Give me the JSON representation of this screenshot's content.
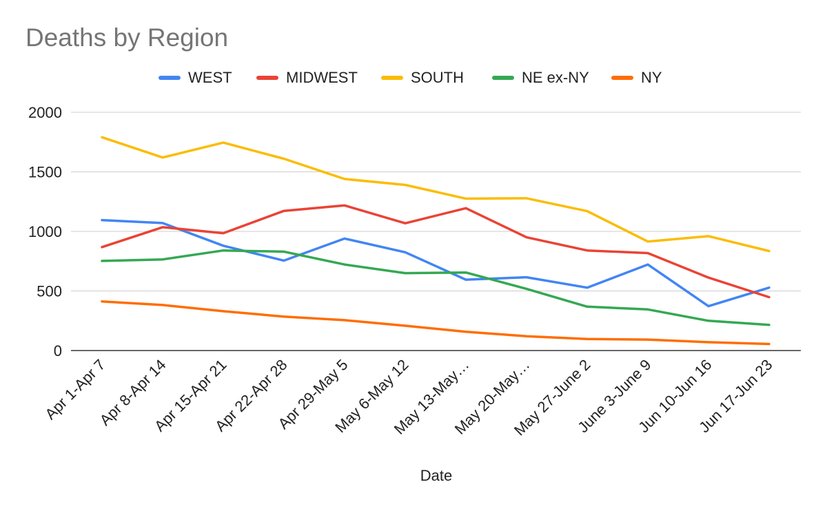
{
  "chart_data": {
    "type": "line",
    "title": "Deaths by Region",
    "xlabel": "Date",
    "ylabel": "",
    "ylim": [
      0,
      2000
    ],
    "yticks": [
      0,
      500,
      1000,
      1500,
      2000
    ],
    "grid": true,
    "legend_position": "top",
    "categories": [
      "Apr 1-Apr 7",
      "Apr 8-Apr 14",
      "Apr 15-Apr 21",
      "Apr 22-Apr 28",
      "Apr 29-May 5",
      "May 6-May 12",
      "May 13-May…",
      "May 20-May…",
      "May 27-June 2",
      "June 3-June 9",
      "Jun 10-Jun 16",
      "Jun 17-Jun 23"
    ],
    "series": [
      {
        "name": "WEST",
        "color": "#4285F4",
        "values": [
          1095,
          1070,
          880,
          755,
          940,
          825,
          595,
          615,
          528,
          722,
          372,
          528
        ]
      },
      {
        "name": "MIDWEST",
        "color": "#EA4335",
        "values": [
          868,
          1035,
          985,
          1172,
          1218,
          1068,
          1195,
          950,
          840,
          818,
          612,
          448
        ]
      },
      {
        "name": "SOUTH",
        "color": "#FBBC04",
        "values": [
          1790,
          1620,
          1745,
          1610,
          1440,
          1390,
          1275,
          1278,
          1170,
          915,
          960,
          835
        ]
      },
      {
        "name": "NE ex-NY",
        "color": "#34A853",
        "values": [
          752,
          765,
          840,
          830,
          722,
          650,
          655,
          518,
          368,
          345,
          250,
          215
        ]
      },
      {
        "name": "NY",
        "color": "#FF6D01",
        "values": [
          412,
          382,
          330,
          285,
          255,
          208,
          158,
          120,
          97,
          92,
          70,
          55
        ]
      }
    ]
  }
}
